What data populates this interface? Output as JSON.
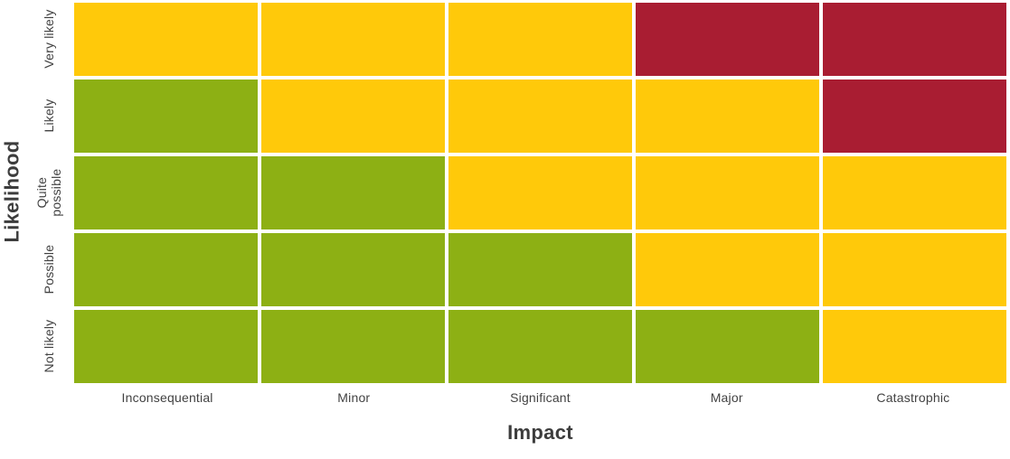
{
  "chart_data": {
    "type": "heatmap",
    "title": "",
    "xlabel": "Impact",
    "ylabel": "Likelihood",
    "x_categories": [
      "Inconsequential",
      "Minor",
      "Significant",
      "Major",
      "Catastrophic"
    ],
    "y_categories": [
      "Very likely",
      "Likely",
      "Quite possible",
      "Possible",
      "Not likely"
    ],
    "cells": [
      [
        "medium",
        "medium",
        "medium",
        "high",
        "high"
      ],
      [
        "low",
        "medium",
        "medium",
        "medium",
        "high"
      ],
      [
        "low",
        "low",
        "medium",
        "medium",
        "medium"
      ],
      [
        "low",
        "low",
        "low",
        "medium",
        "medium"
      ],
      [
        "low",
        "low",
        "low",
        "low",
        "medium"
      ]
    ],
    "level_colors": {
      "low": "#8DB014",
      "medium": "#FFC90A",
      "high": "#A91D32"
    },
    "background_color": "#FFFFFF",
    "text_color": "#424242",
    "axis_title_color": "#3D3D3D",
    "grid": false,
    "legend": false
  }
}
